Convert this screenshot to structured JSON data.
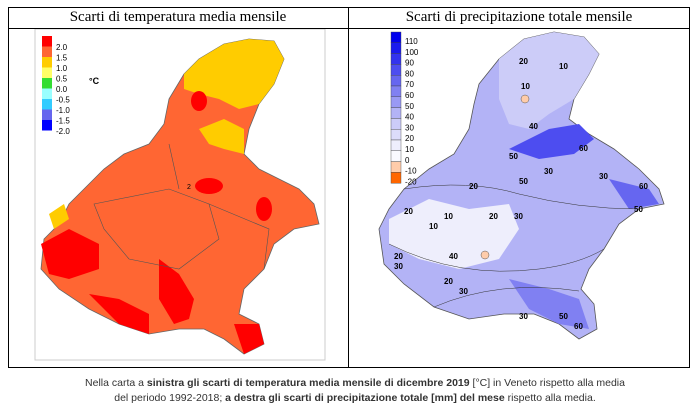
{
  "left_panel": {
    "title": "Scarti di temperatura media mensile",
    "unit": "°C",
    "legend": [
      {
        "label": "2.0",
        "color": "#ff0000"
      },
      {
        "label": "1.5",
        "color": "#ff6633"
      },
      {
        "label": "1.0",
        "color": "#ffcc00"
      },
      {
        "label": "0.5",
        "color": "#ffff66"
      },
      {
        "label": "0.0",
        "color": "#33dd33"
      },
      {
        "label": "-0.5",
        "color": "#99ffff"
      },
      {
        "label": "-1.0",
        "color": "#33ccff"
      },
      {
        "label": "-1.5",
        "color": "#6666ee"
      },
      {
        "label": "-2.0",
        "color": "#0000ff"
      }
    ],
    "map_label": "2"
  },
  "right_panel": {
    "title": "Scarti di precipitazione totale mensile",
    "legend": [
      {
        "label": "110",
        "color": "#0000ee"
      },
      {
        "label": "100",
        "color": "#1a1aee"
      },
      {
        "label": "90",
        "color": "#3333ee"
      },
      {
        "label": "80",
        "color": "#4d4df0"
      },
      {
        "label": "70",
        "color": "#6666f0"
      },
      {
        "label": "60",
        "color": "#8080f2"
      },
      {
        "label": "50",
        "color": "#9999f4"
      },
      {
        "label": "40",
        "color": "#b3b3f6"
      },
      {
        "label": "30",
        "color": "#ccccf8"
      },
      {
        "label": "20",
        "color": "#dcdcfa"
      },
      {
        "label": "10",
        "color": "#eeeefc"
      },
      {
        "label": "0",
        "color": "#fafaff"
      },
      {
        "label": "-10",
        "color": "#ffccaa"
      },
      {
        "label": "-20",
        "color": "#ff6600"
      }
    ],
    "contour_labels": [
      "20",
      "10",
      "10",
      "40",
      "50",
      "60",
      "30",
      "50",
      "20",
      "30",
      "60",
      "50",
      "20",
      "10",
      "10",
      "20",
      "30",
      "20",
      "30",
      "30",
      "20",
      "30",
      "50",
      "60",
      "40"
    ]
  },
  "caption": {
    "line1_a": "Nella carta a ",
    "line1_b": "sinistra gli scarti di temperatura media mensile di dicembre 2019",
    "line1_c": " [°C] in Veneto rispetto alla media",
    "line2_a": "del periodo 1992-2018; ",
    "line2_b": "a destra gli scarti di precipitazione totale [mm] del mese",
    "line2_c": " rispetto alla media."
  }
}
